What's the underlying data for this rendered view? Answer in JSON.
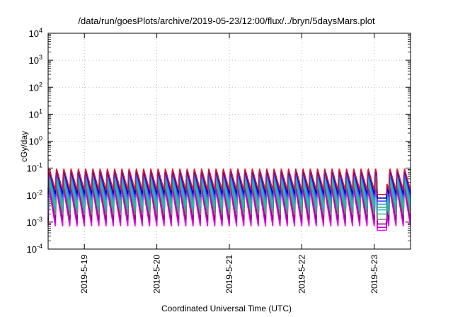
{
  "chart_data": {
    "type": "line",
    "title": "/data/run/goesPlots/archive/2019-05-23/12:00/flux/../bryn/5daysMars.plot",
    "xlabel": "Coordinated Universal Time (UTC)",
    "ylabel": "cGy/day",
    "yscale": "log",
    "ylim": [
      0.0001,
      10000
    ],
    "xlim": [
      "2019-05-18T12:00",
      "2019-05-23T12:00"
    ],
    "grid": true,
    "x_tick_labels": [
      "2019-5-19",
      "2019-5-20",
      "2019-5-21",
      "2019-5-22",
      "2019-5-23"
    ],
    "y_ticks": [
      {
        "base": "10",
        "exp": "-4"
      },
      {
        "base": "10",
        "exp": "-3"
      },
      {
        "base": "10",
        "exp": "-2"
      },
      {
        "base": "10",
        "exp": "-1"
      },
      {
        "base": "10",
        "exp": "0"
      },
      {
        "base": "10",
        "exp": "1"
      },
      {
        "base": "10",
        "exp": "2"
      },
      {
        "base": "10",
        "exp": "3"
      },
      {
        "base": "10",
        "exp": "4"
      }
    ],
    "cycles_per_day": 10,
    "dropout": {
      "start": "2019-05-23T00:50",
      "end": "2019-05-23T04:00"
    },
    "series": [
      {
        "color": "#ff00ff",
        "peak": 0.018,
        "trough": 0.0007
      },
      {
        "color": "#cc00cc",
        "peak": 0.022,
        "trough": 0.0009
      },
      {
        "color": "#990099",
        "peak": 0.028,
        "trough": 0.0012
      },
      {
        "color": "#808080",
        "peak": 0.034,
        "trough": 0.0018
      },
      {
        "color": "#20b2aa",
        "peak": 0.045,
        "trough": 0.0028
      },
      {
        "color": "#00ced1",
        "peak": 0.055,
        "trough": 0.004
      },
      {
        "color": "#3cb371",
        "peak": 0.062,
        "trough": 0.005
      },
      {
        "color": "#1e90ff",
        "peak": 0.07,
        "trough": 0.0065
      },
      {
        "color": "#4040ff",
        "peak": 0.082,
        "trough": 0.0085
      },
      {
        "color": "#0000cd",
        "peak": 0.095,
        "trough": 0.011
      },
      {
        "color": "#dc143c",
        "peak": 0.105,
        "trough": 0.015
      }
    ]
  }
}
